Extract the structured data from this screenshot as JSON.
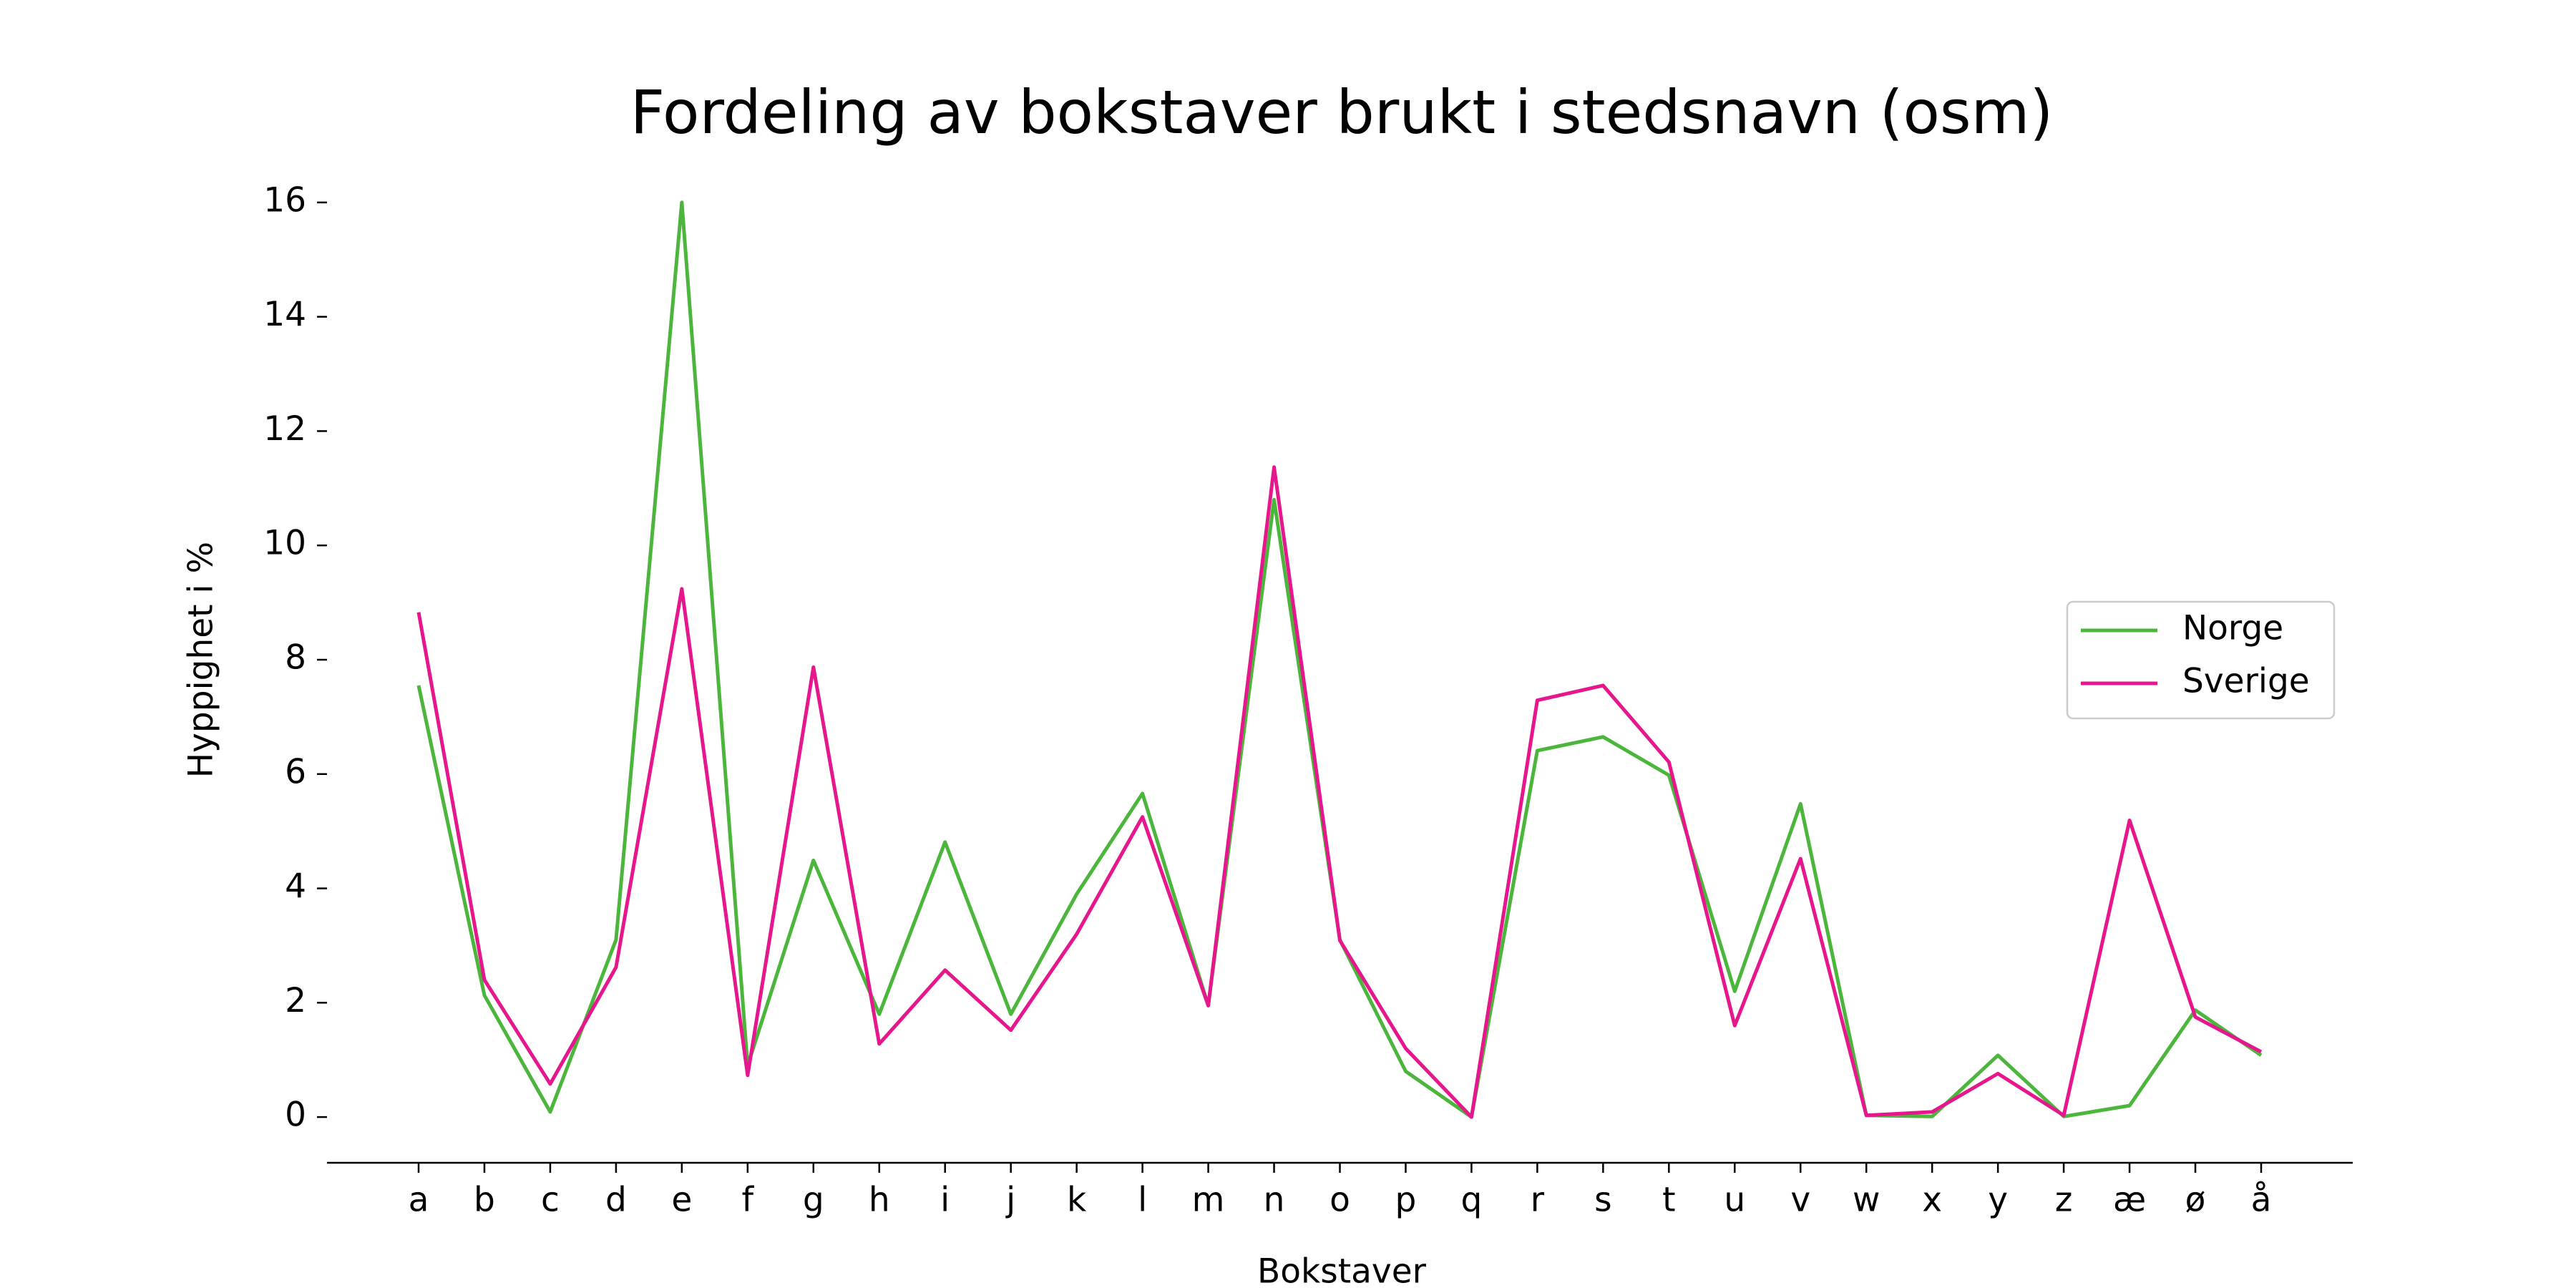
{
  "chart_data": {
    "type": "line",
    "title": "Fordeling av bokstaver brukt i stedsnavn (osm)",
    "x_label": "Bokstaver",
    "y_label": "Hyppighet i %",
    "categories": [
      "a",
      "b",
      "c",
      "d",
      "e",
      "f",
      "g",
      "h",
      "i",
      "j",
      "k",
      "l",
      "m",
      "n",
      "o",
      "p",
      "q",
      "r",
      "s",
      "t",
      "u",
      "v",
      "w",
      "x",
      "y",
      "z",
      "æ",
      "ø",
      "å"
    ],
    "series": [
      {
        "name": "Norge",
        "color": "#4bb53c",
        "values": [
          7.55,
          2.13,
          0.09,
          3.1,
          16.0,
          0.9,
          4.49,
          1.8,
          4.81,
          1.8,
          3.9,
          5.66,
          1.95,
          10.8,
          3.1,
          0.8,
          0,
          6.41,
          6.65,
          5.98,
          2.2,
          5.48,
          0.03,
          0.01,
          1.08,
          0.01,
          0.2,
          1.87,
          1.08
        ]
      },
      {
        "name": "Sverige",
        "color": "#e6178c",
        "values": [
          8.83,
          2.4,
          0.58,
          2.62,
          9.24,
          0.73,
          7.87,
          1.28,
          2.57,
          1.52,
          3.2,
          5.25,
          1.95,
          11.37,
          3.09,
          1.2,
          0,
          7.29,
          7.55,
          6.21,
          1.6,
          4.52,
          0.03,
          0.09,
          0.76,
          0.03,
          5.19,
          1.75,
          1.14
        ]
      }
    ],
    "ylim": [
      -0.8,
      16.8
    ],
    "yticks": [
      0,
      2,
      4,
      6,
      8,
      10,
      12,
      14,
      16
    ],
    "legend": "right"
  }
}
